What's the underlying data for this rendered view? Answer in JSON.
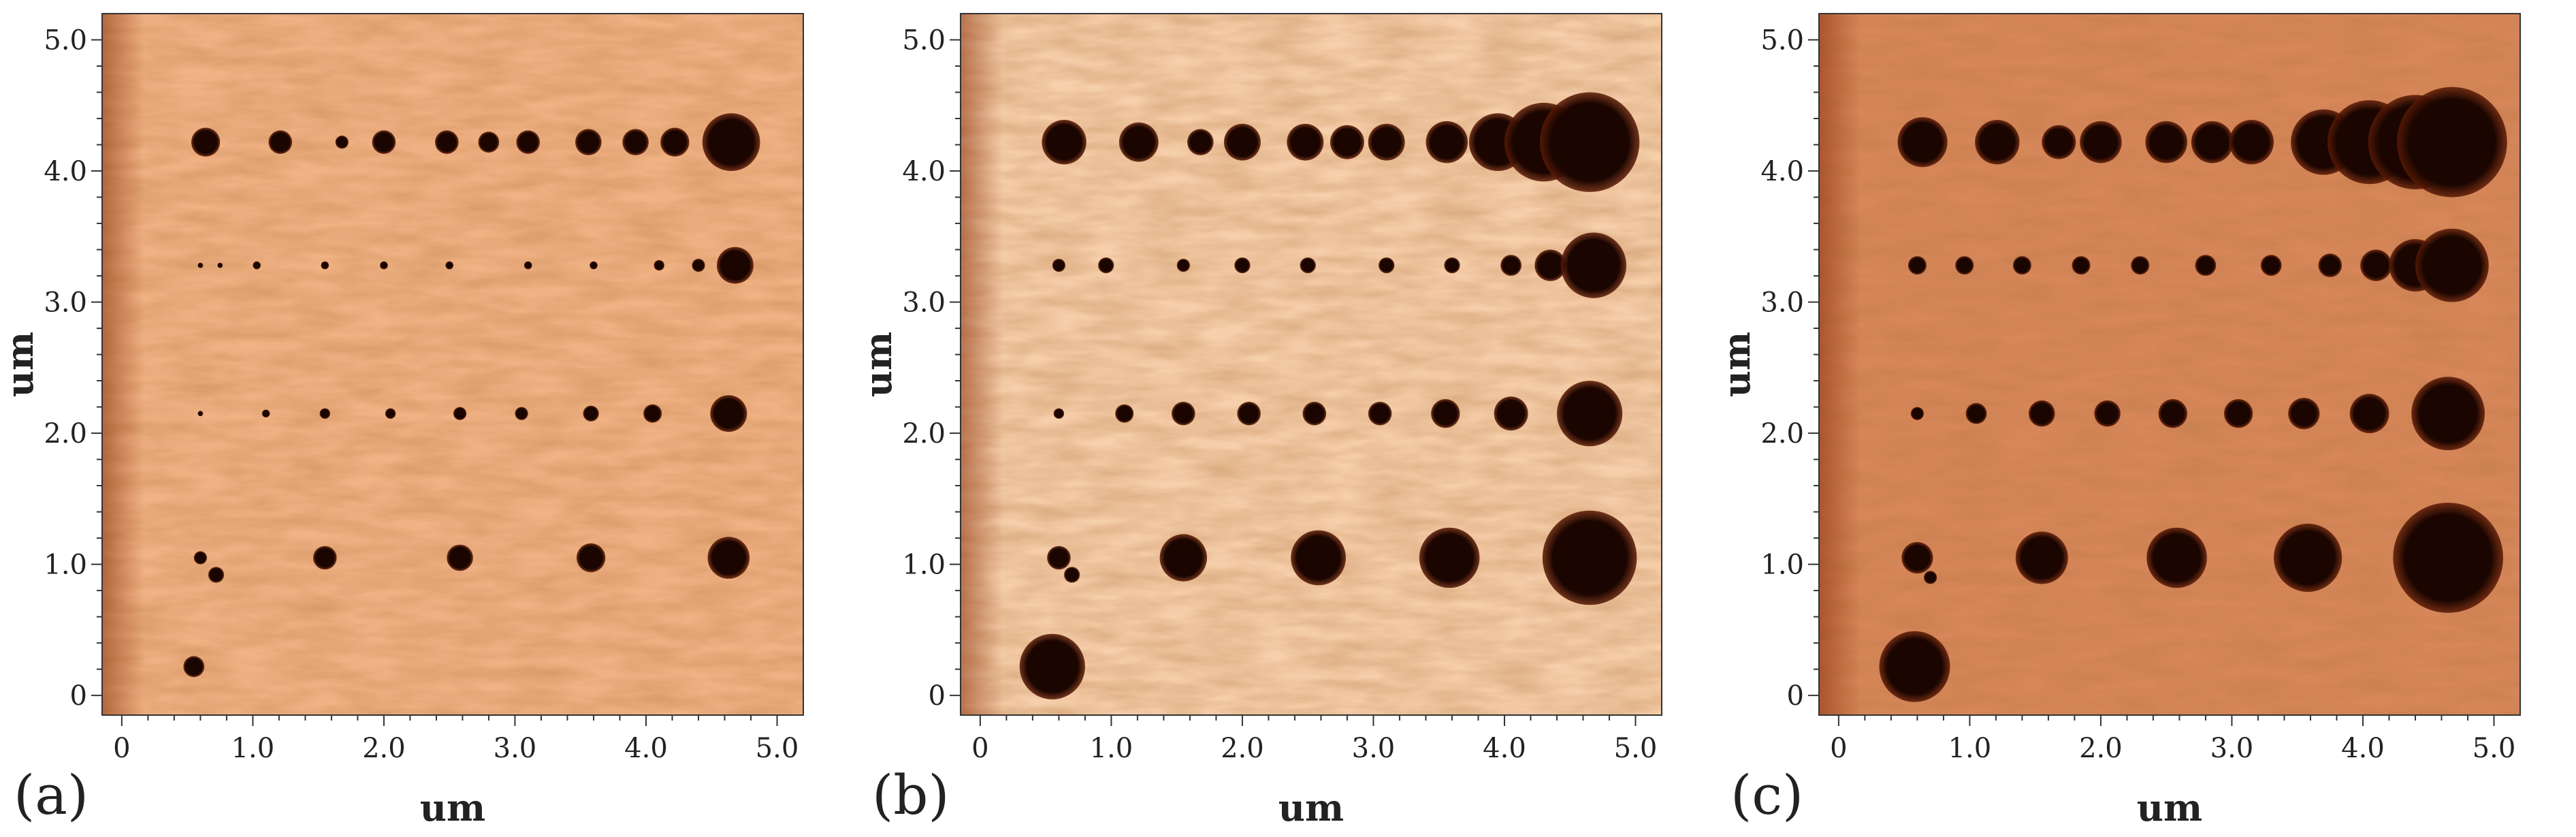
{
  "figure": {
    "axis_label": "um",
    "x_ticks": [
      "0",
      "1.0",
      "2.0",
      "3.0",
      "4.0",
      "5.0"
    ],
    "y_ticks": [
      "0",
      "1.0",
      "2.0",
      "3.0",
      "4.0",
      "5.0"
    ],
    "axis_range": [
      -0.15,
      5.2
    ],
    "colors": {
      "substrate": "#f2b48a",
      "pit": "#1a0500",
      "accent": "#c0521e"
    },
    "panels": [
      {
        "letter": "(a)",
        "tone": "#f1b384",
        "pits": [
          [
            0.64,
            4.22,
            0.11
          ],
          [
            1.21,
            4.22,
            0.09
          ],
          [
            1.68,
            4.22,
            0.05
          ],
          [
            2.0,
            4.22,
            0.09
          ],
          [
            2.48,
            4.22,
            0.09
          ],
          [
            2.8,
            4.22,
            0.08
          ],
          [
            3.1,
            4.22,
            0.09
          ],
          [
            3.56,
            4.22,
            0.1
          ],
          [
            3.92,
            4.22,
            0.1
          ],
          [
            4.22,
            4.22,
            0.11
          ],
          [
            4.65,
            4.22,
            0.22
          ],
          [
            0.6,
            3.28,
            0.02
          ],
          [
            0.75,
            3.28,
            0.02
          ],
          [
            1.03,
            3.28,
            0.03
          ],
          [
            1.55,
            3.28,
            0.03
          ],
          [
            2.0,
            3.28,
            0.03
          ],
          [
            2.5,
            3.28,
            0.03
          ],
          [
            3.1,
            3.28,
            0.03
          ],
          [
            3.6,
            3.28,
            0.03
          ],
          [
            4.1,
            3.28,
            0.04
          ],
          [
            4.4,
            3.28,
            0.05
          ],
          [
            4.68,
            3.28,
            0.14
          ],
          [
            0.6,
            2.15,
            0.02
          ],
          [
            1.1,
            2.15,
            0.03
          ],
          [
            1.55,
            2.15,
            0.04
          ],
          [
            2.05,
            2.15,
            0.04
          ],
          [
            2.58,
            2.15,
            0.05
          ],
          [
            3.05,
            2.15,
            0.05
          ],
          [
            3.58,
            2.15,
            0.06
          ],
          [
            4.05,
            2.15,
            0.07
          ],
          [
            4.63,
            2.15,
            0.14
          ],
          [
            0.6,
            1.05,
            0.05
          ],
          [
            0.72,
            0.92,
            0.06
          ],
          [
            1.55,
            1.05,
            0.09
          ],
          [
            2.58,
            1.05,
            0.1
          ],
          [
            3.58,
            1.05,
            0.11
          ],
          [
            4.63,
            1.05,
            0.16
          ],
          [
            0.55,
            0.22,
            0.08
          ]
        ]
      },
      {
        "letter": "(b)",
        "tone": "#f6cfab",
        "pits": [
          [
            0.64,
            4.22,
            0.17
          ],
          [
            1.21,
            4.22,
            0.15
          ],
          [
            1.68,
            4.22,
            0.1
          ],
          [
            2.0,
            4.22,
            0.14
          ],
          [
            2.48,
            4.22,
            0.14
          ],
          [
            2.8,
            4.22,
            0.13
          ],
          [
            3.1,
            4.22,
            0.14
          ],
          [
            3.56,
            4.22,
            0.16
          ],
          [
            3.95,
            4.22,
            0.22
          ],
          [
            4.3,
            4.22,
            0.3
          ],
          [
            4.65,
            4.22,
            0.38
          ],
          [
            0.6,
            3.28,
            0.05
          ],
          [
            0.96,
            3.28,
            0.06
          ],
          [
            1.55,
            3.28,
            0.05
          ],
          [
            2.0,
            3.28,
            0.06
          ],
          [
            2.5,
            3.28,
            0.06
          ],
          [
            3.1,
            3.28,
            0.06
          ],
          [
            3.6,
            3.28,
            0.06
          ],
          [
            4.05,
            3.28,
            0.08
          ],
          [
            4.35,
            3.28,
            0.12
          ],
          [
            4.68,
            3.28,
            0.25
          ],
          [
            0.6,
            2.15,
            0.04
          ],
          [
            1.1,
            2.15,
            0.07
          ],
          [
            1.55,
            2.15,
            0.09
          ],
          [
            2.05,
            2.15,
            0.09
          ],
          [
            2.55,
            2.15,
            0.09
          ],
          [
            3.05,
            2.15,
            0.09
          ],
          [
            3.55,
            2.15,
            0.11
          ],
          [
            4.05,
            2.15,
            0.13
          ],
          [
            4.65,
            2.15,
            0.25
          ],
          [
            0.6,
            1.05,
            0.09
          ],
          [
            0.7,
            0.92,
            0.06
          ],
          [
            1.55,
            1.05,
            0.18
          ],
          [
            2.58,
            1.05,
            0.21
          ],
          [
            3.58,
            1.05,
            0.23
          ],
          [
            4.65,
            1.05,
            0.36
          ],
          [
            0.55,
            0.22,
            0.25
          ]
        ]
      },
      {
        "letter": "(c)",
        "tone": "#d8875a",
        "pits": [
          [
            0.64,
            4.22,
            0.19
          ],
          [
            1.21,
            4.22,
            0.17
          ],
          [
            1.68,
            4.22,
            0.13
          ],
          [
            2.0,
            4.22,
            0.16
          ],
          [
            2.5,
            4.22,
            0.16
          ],
          [
            2.85,
            4.22,
            0.16
          ],
          [
            3.15,
            4.22,
            0.17
          ],
          [
            3.7,
            4.22,
            0.25
          ],
          [
            4.05,
            4.22,
            0.32
          ],
          [
            4.4,
            4.22,
            0.36
          ],
          [
            4.68,
            4.22,
            0.42
          ],
          [
            0.6,
            3.28,
            0.07
          ],
          [
            0.96,
            3.28,
            0.07
          ],
          [
            1.4,
            3.28,
            0.07
          ],
          [
            1.85,
            3.28,
            0.07
          ],
          [
            2.3,
            3.28,
            0.07
          ],
          [
            2.8,
            3.28,
            0.08
          ],
          [
            3.3,
            3.28,
            0.08
          ],
          [
            3.75,
            3.28,
            0.09
          ],
          [
            4.1,
            3.28,
            0.12
          ],
          [
            4.4,
            3.28,
            0.2
          ],
          [
            4.68,
            3.28,
            0.28
          ],
          [
            0.6,
            2.15,
            0.05
          ],
          [
            1.05,
            2.15,
            0.08
          ],
          [
            1.55,
            2.15,
            0.1
          ],
          [
            2.05,
            2.15,
            0.1
          ],
          [
            2.55,
            2.15,
            0.11
          ],
          [
            3.05,
            2.15,
            0.11
          ],
          [
            3.55,
            2.15,
            0.12
          ],
          [
            4.05,
            2.15,
            0.15
          ],
          [
            4.65,
            2.15,
            0.28
          ],
          [
            0.6,
            1.05,
            0.12
          ],
          [
            0.7,
            0.9,
            0.05
          ],
          [
            1.55,
            1.05,
            0.2
          ],
          [
            2.58,
            1.05,
            0.23
          ],
          [
            3.58,
            1.05,
            0.26
          ],
          [
            4.65,
            1.05,
            0.42
          ],
          [
            0.58,
            0.22,
            0.27
          ]
        ]
      }
    ]
  }
}
